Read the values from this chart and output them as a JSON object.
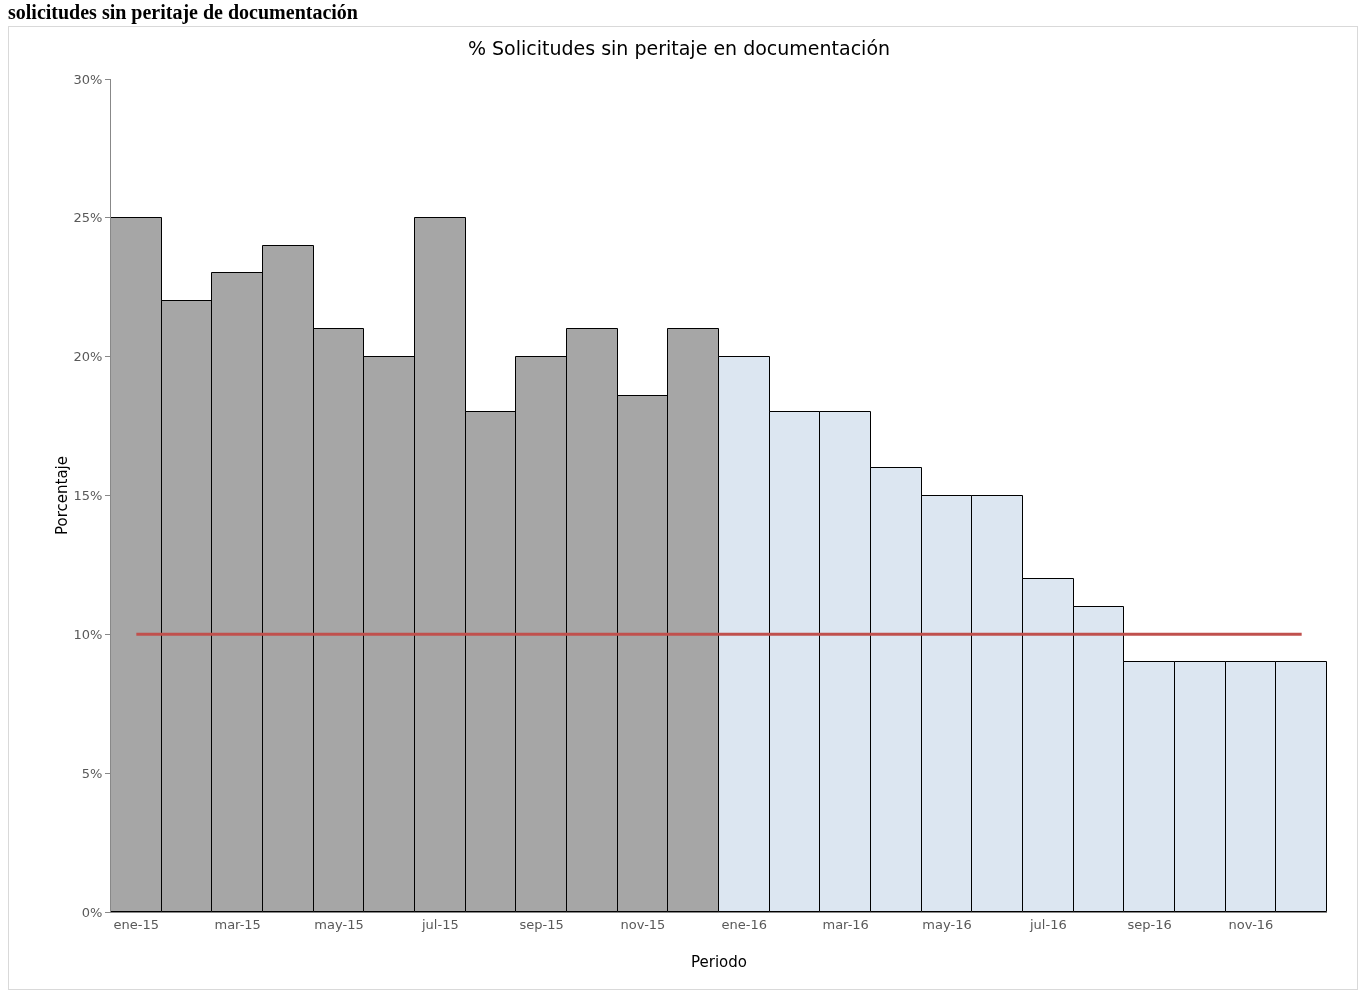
{
  "chart_data": {
    "type": "bar",
    "title": "% Solicitudes sin peritaje en documentación",
    "xlabel": "Periodo",
    "ylabel": "Porcentaje",
    "annotations": [
      "solicitudes sin peritaje de documentación"
    ],
    "categories": [
      "ene-15",
      null,
      "mar-15",
      null,
      "may-15",
      null,
      "jul-15",
      null,
      "sep-15",
      null,
      "nov-15",
      null,
      "ene-16",
      null,
      "mar-16",
      null,
      "may-16",
      null,
      "jul-16",
      null,
      "sep-16",
      null,
      "nov-16",
      null
    ],
    "values": [
      25,
      22,
      23,
      24,
      21,
      20,
      25,
      18,
      20,
      21,
      18.6,
      21,
      20,
      18,
      18,
      16,
      15,
      15,
      12,
      11,
      9,
      9,
      9,
      9
    ],
    "colors": [
      "#a6a6a6",
      "#a6a6a6",
      "#a6a6a6",
      "#a6a6a6",
      "#a6a6a6",
      "#a6a6a6",
      "#a6a6a6",
      "#a6a6a6",
      "#a6a6a6",
      "#a6a6a6",
      "#a6a6a6",
      "#a6a6a6",
      "#dce6f1",
      "#dce6f1",
      "#dce6f1",
      "#dce6f1",
      "#dce6f1",
      "#dce6f1",
      "#dce6f1",
      "#dce6f1",
      "#dce6f1",
      "#dce6f1",
      "#dce6f1",
      "#dce6f1"
    ],
    "ylim": [
      0,
      30
    ],
    "yticks": [
      {
        "value": 0,
        "label": "0%"
      },
      {
        "value": 5,
        "label": "5%"
      },
      {
        "value": 10,
        "label": "10%"
      },
      {
        "value": 15,
        "label": "15%"
      },
      {
        "value": 20,
        "label": "20%"
      },
      {
        "value": 25,
        "label": "25%"
      },
      {
        "value": 30,
        "label": "30%"
      }
    ],
    "ref_lines": [
      {
        "axis": "y",
        "value": 10,
        "color": "#c0504d",
        "line_style": "solid"
      }
    ],
    "grid": false
  }
}
